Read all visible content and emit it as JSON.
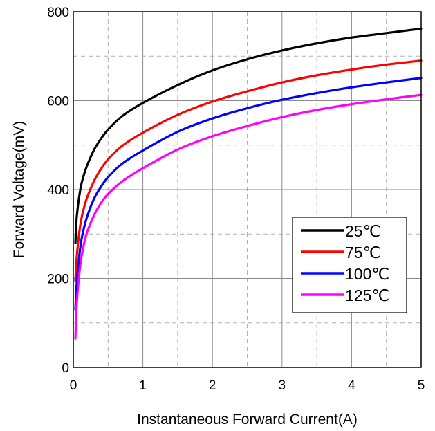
{
  "chart_data": {
    "type": "line",
    "title": "",
    "xlabel": "Instantaneous Forward Current(A)",
    "ylabel": "Forward Voltage(mV)",
    "xlim": [
      0,
      5
    ],
    "ylim": [
      0,
      800
    ],
    "x_ticks": [
      "0",
      "1",
      "2",
      "3",
      "4",
      "5"
    ],
    "y_ticks": [
      "0",
      "200",
      "400",
      "600",
      "800"
    ],
    "grid": "major solid, minor dashed",
    "legend_position": "bottom-right",
    "series": [
      {
        "name": "25℃",
        "color": "#000000",
        "x": [
          0.03,
          0.05,
          0.1,
          0.15,
          0.2,
          0.3,
          0.4,
          0.5,
          0.7,
          1.0,
          1.5,
          2.0,
          2.5,
          3.0,
          3.5,
          4.0,
          4.5,
          5.0
        ],
        "y": [
          280,
          340,
          400,
          432,
          455,
          490,
          515,
          535,
          565,
          595,
          635,
          668,
          693,
          713,
          729,
          742,
          752,
          762
        ]
      },
      {
        "name": "75℃",
        "color": "#ff0000",
        "x": [
          0.03,
          0.05,
          0.1,
          0.15,
          0.2,
          0.3,
          0.4,
          0.5,
          0.7,
          1.0,
          1.5,
          2.0,
          2.5,
          3.0,
          3.5,
          4.0,
          4.5,
          5.0
        ],
        "y": [
          195,
          250,
          320,
          357,
          383,
          420,
          447,
          468,
          498,
          528,
          568,
          598,
          621,
          641,
          657,
          670,
          681,
          690
        ]
      },
      {
        "name": "100℃",
        "color": "#0000ff",
        "x": [
          0.03,
          0.05,
          0.1,
          0.15,
          0.2,
          0.3,
          0.4,
          0.5,
          0.7,
          1.0,
          1.5,
          2.0,
          2.5,
          3.0,
          3.5,
          4.0,
          4.5,
          5.0
        ],
        "y": [
          130,
          190,
          270,
          312,
          340,
          380,
          407,
          428,
          458,
          488,
          530,
          560,
          583,
          602,
          617,
          630,
          641,
          651
        ]
      },
      {
        "name": "125℃",
        "color": "#ff00ff",
        "x": [
          0.03,
          0.05,
          0.1,
          0.15,
          0.2,
          0.3,
          0.4,
          0.5,
          0.7,
          1.0,
          1.5,
          2.0,
          2.5,
          3.0,
          3.5,
          4.0,
          4.5,
          5.0
        ],
        "y": [
          65,
          145,
          230,
          275,
          305,
          343,
          370,
          390,
          418,
          448,
          490,
          520,
          543,
          563,
          579,
          592,
          603,
          613
        ]
      }
    ]
  }
}
